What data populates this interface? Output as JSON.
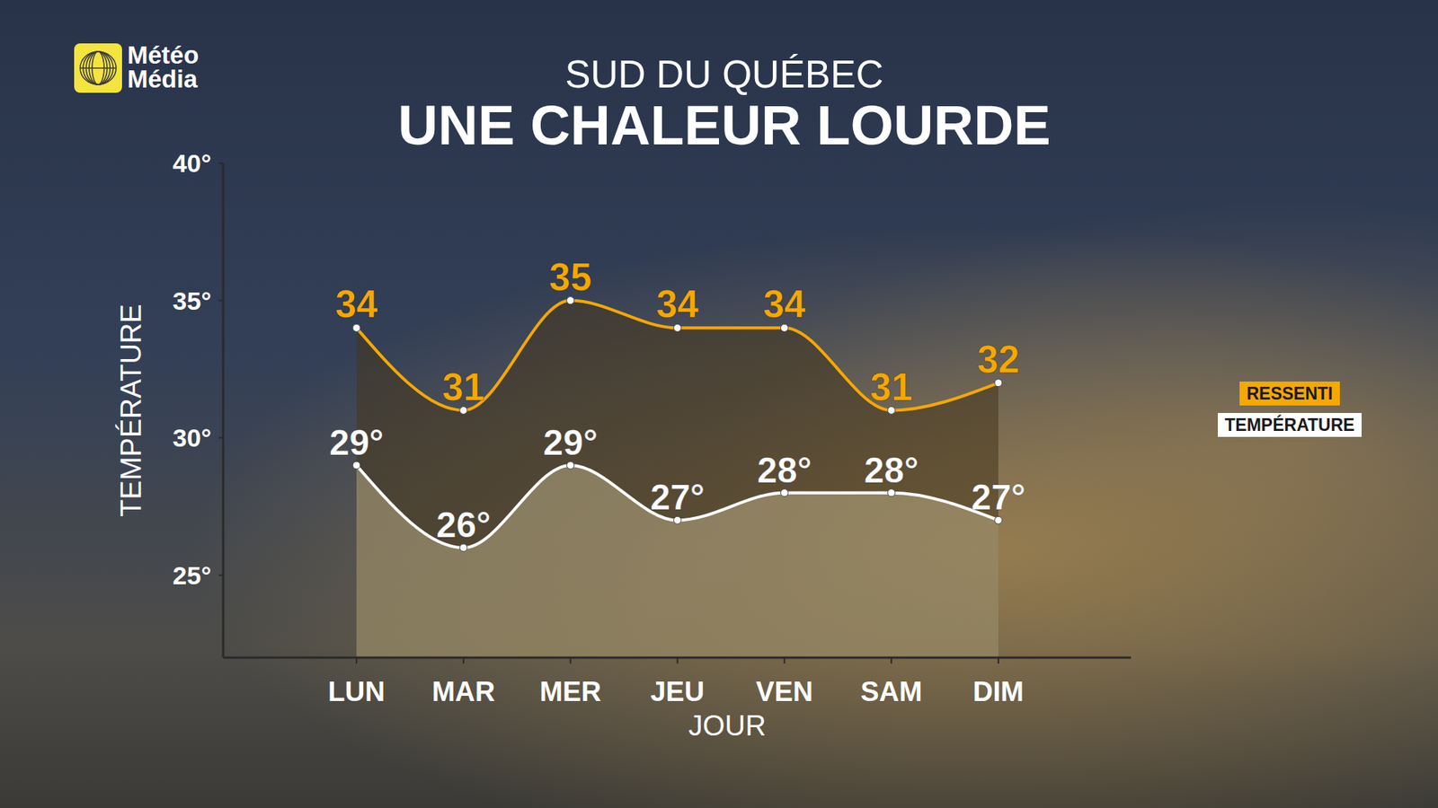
{
  "chart_data": {
    "type": "area",
    "logo": "Météo Média",
    "subtitle": "SUD DU QUÉBEC",
    "title": "UNE CHALEUR LOURDE",
    "x_label": "JOUR",
    "y_label": "TEMPÉRATURE",
    "categories": [
      "LUN",
      "MAR",
      "MER",
      "JEU",
      "VEN",
      "SAM",
      "DIM"
    ],
    "series": [
      {
        "name": "RESSENTI",
        "color": "#f5a800",
        "marker": "circle",
        "values": [
          34,
          31,
          35,
          34,
          34,
          31,
          32
        ]
      },
      {
        "name": "TEMPÉRATURE",
        "color": "#ffffff",
        "marker": "circle",
        "values": [
          29,
          26,
          29,
          27,
          28,
          28,
          27
        ],
        "value_labels": [
          "29°",
          "26°",
          "29°",
          "27°",
          "28°",
          "28°",
          "27°"
        ]
      }
    ],
    "ylim": [
      22,
      40
    ],
    "yticks": [
      {
        "value": 25,
        "label": "25°"
      },
      {
        "value": 30,
        "label": "30°"
      },
      {
        "value": 35,
        "label": "35°"
      },
      {
        "value": 40,
        "label": "40°"
      }
    ],
    "grid": false,
    "legend": "right",
    "data_labels": true
  }
}
